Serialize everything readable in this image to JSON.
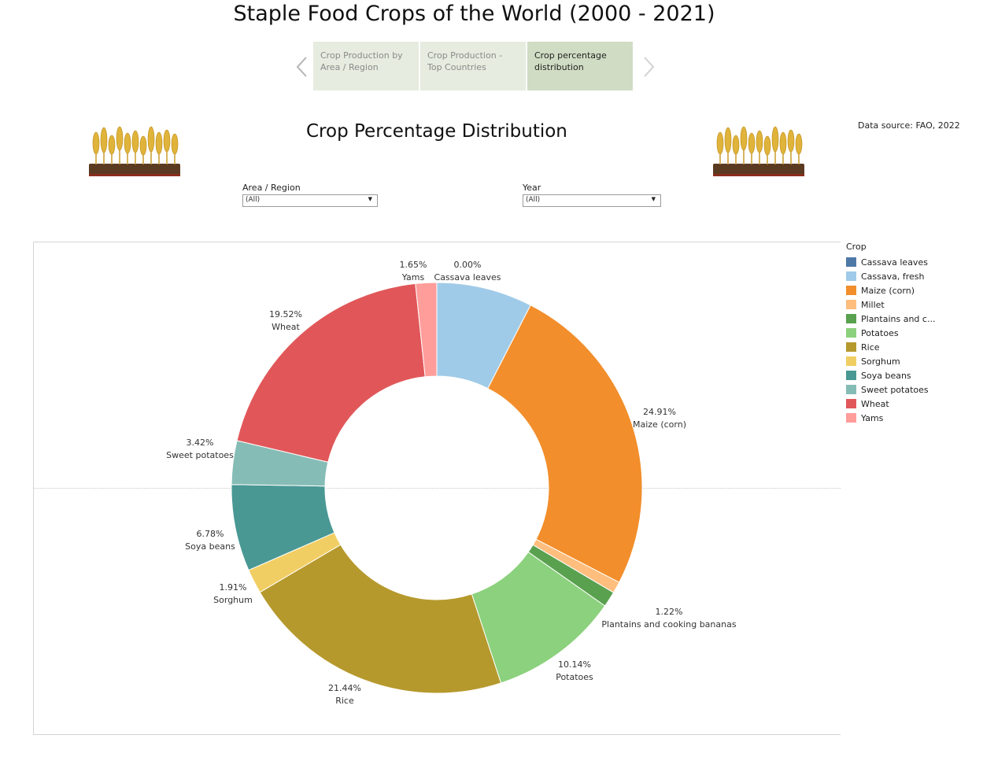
{
  "dashboard": {
    "title": "Staple Food Crops of the World (2000 - 2021)",
    "tabs": [
      {
        "label": "Crop Production by Area / Region",
        "active": false
      },
      {
        "label": "Crop Production - Top Countries",
        "active": false
      },
      {
        "label": "Crop percentage distribution",
        "active": true
      }
    ],
    "subtitle": "Crop Percentage Distribution",
    "source": "Data source: FAO, 2022"
  },
  "filters": {
    "area": {
      "label": "Area / Region",
      "value": "(All)"
    },
    "year": {
      "label": "Year",
      "value": "(All)"
    }
  },
  "legend": {
    "title": "Crop",
    "items": [
      {
        "label": "Cassava leaves",
        "color": "#4e79a7"
      },
      {
        "label": "Cassava, fresh",
        "color": "#a0cbe8"
      },
      {
        "label": "Maize (corn)",
        "color": "#f28e2b"
      },
      {
        "label": "Millet",
        "color": "#ffbe7d"
      },
      {
        "label": "Plantains and c...",
        "color": "#59a14f"
      },
      {
        "label": "Potatoes",
        "color": "#8cd17d"
      },
      {
        "label": "Rice",
        "color": "#b6992d"
      },
      {
        "label": "Sorghum",
        "color": "#f1ce63"
      },
      {
        "label": "Soya beans",
        "color": "#499894"
      },
      {
        "label": "Sweet potatoes",
        "color": "#86bcb6"
      },
      {
        "label": "Wheat",
        "color": "#e15759"
      },
      {
        "label": "Yams",
        "color": "#ff9d9a"
      }
    ]
  },
  "chart_data": {
    "type": "pie",
    "donut": true,
    "title": "Crop Percentage Distribution",
    "slices": [
      {
        "name": "Cassava leaves",
        "value": 0.0,
        "label": "0.00%",
        "color": "#4e79a7"
      },
      {
        "name": "Cassava, fresh",
        "value": 7.5,
        "label": "",
        "color": "#a0cbe8"
      },
      {
        "name": "Maize (corn)",
        "value": 24.91,
        "label": "24.91%",
        "color": "#f28e2b"
      },
      {
        "name": "Millet",
        "value": 0.9,
        "label": "",
        "color": "#ffbe7d"
      },
      {
        "name": "Plantains and cooking bananas",
        "value": 1.22,
        "label": "1.22%",
        "color": "#59a14f"
      },
      {
        "name": "Potatoes",
        "value": 10.14,
        "label": "10.14%",
        "color": "#8cd17d"
      },
      {
        "name": "Rice",
        "value": 21.44,
        "label": "21.44%",
        "color": "#b6992d"
      },
      {
        "name": "Sorghum",
        "value": 1.91,
        "label": "1.91%",
        "color": "#f1ce63"
      },
      {
        "name": "Soya beans",
        "value": 6.78,
        "label": "6.78%",
        "color": "#499894"
      },
      {
        "name": "Sweet potatoes",
        "value": 3.42,
        "label": "3.42%",
        "color": "#86bcb6"
      },
      {
        "name": "Wheat",
        "value": 19.52,
        "label": "19.52%",
        "color": "#e15759"
      },
      {
        "name": "Yams",
        "value": 1.65,
        "label": "1.65%",
        "color": "#ff9d9a"
      }
    ],
    "legend_position": "right"
  }
}
